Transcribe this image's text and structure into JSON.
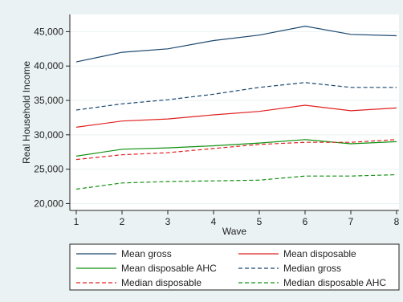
{
  "chart_data": {
    "type": "line",
    "title": "",
    "xlabel": "Wave",
    "ylabel": "Real Household Income",
    "x": [
      1,
      2,
      3,
      4,
      5,
      6,
      7,
      8
    ],
    "xticks": [
      "1",
      "2",
      "3",
      "4",
      "5",
      "6",
      "7",
      "8"
    ],
    "ylim": [
      19000,
      47500
    ],
    "yticks": [
      20000,
      25000,
      30000,
      35000,
      40000,
      45000
    ],
    "ytick_labels": [
      "20,000",
      "25,000",
      "30,000",
      "35,000",
      "40,000",
      "45,000"
    ],
    "grid": "horizontal",
    "legend_position": "bottom",
    "series": [
      {
        "name": "Mean gross",
        "color": "#1a476f",
        "dash": "solid",
        "values": [
          40600,
          42000,
          42500,
          43700,
          44500,
          45800,
          44600,
          44400
        ]
      },
      {
        "name": "Mean disposable",
        "color": "#e02020",
        "dash": "solid",
        "values": [
          31100,
          32000,
          32300,
          32900,
          33400,
          34300,
          33500,
          33900
        ]
      },
      {
        "name": "Mean disposable AHC",
        "color": "#109010",
        "dash": "solid",
        "values": [
          26900,
          27900,
          28100,
          28400,
          28800,
          29300,
          28700,
          29000
        ]
      },
      {
        "name": "Median gross",
        "color": "#1a476f",
        "dash": "dashed",
        "values": [
          33600,
          34500,
          35100,
          35900,
          36900,
          37600,
          36900,
          36900
        ]
      },
      {
        "name": "Median disposable",
        "color": "#e02020",
        "dash": "dashed",
        "values": [
          26400,
          27100,
          27400,
          28000,
          28600,
          28900,
          28900,
          29300
        ]
      },
      {
        "name": "Median disposable AHC",
        "color": "#109010",
        "dash": "dashed",
        "values": [
          22100,
          23000,
          23200,
          23300,
          23400,
          24000,
          24000,
          24200
        ]
      }
    ]
  }
}
